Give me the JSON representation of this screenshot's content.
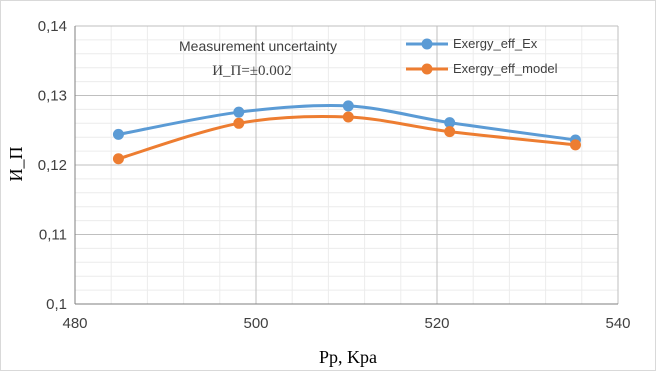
{
  "chart_data": {
    "type": "line",
    "title": "",
    "xlabel": "Pp, Kpa",
    "ylabel": "И_П",
    "xlim": [
      480,
      540
    ],
    "ylim": [
      0.1,
      0.14
    ],
    "x_ticks": [
      480,
      500,
      520,
      540
    ],
    "x_tick_labels": [
      "480",
      "500",
      "520",
      "540"
    ],
    "y_ticks": [
      0.1,
      0.11,
      0.12,
      0.13,
      0.14
    ],
    "y_tick_labels": [
      "0,1",
      "0,11",
      "0,12",
      "0,13",
      "0,14"
    ],
    "grid": true,
    "legend_position": "top-right",
    "annotation": [
      "Measurement uncertainty",
      "И_П=±0.002"
    ],
    "series": [
      {
        "name": "Exergy_eff_Ex",
        "color": "#5B9BD5",
        "x": [
          484.8,
          498.1,
          510.2,
          521.4,
          535.3
        ],
        "y": [
          0.1244,
          0.1276,
          0.1285,
          0.1261,
          0.1236
        ]
      },
      {
        "name": "Exergy_eff_model",
        "color": "#ED7D31",
        "x": [
          484.8,
          498.1,
          510.2,
          521.4,
          535.3
        ],
        "y": [
          0.1209,
          0.126,
          0.1269,
          0.1248,
          0.1229
        ]
      }
    ]
  }
}
